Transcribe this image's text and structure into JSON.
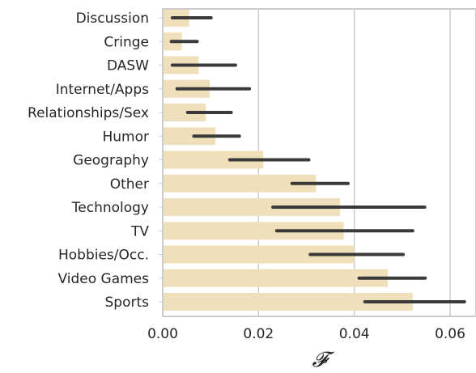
{
  "chart_data": {
    "type": "bar",
    "orientation": "horizontal",
    "categories": [
      "Discussion",
      "Cringe",
      "DASW",
      "Internet/Apps",
      "Relationships/Sex",
      "Humor",
      "Geography",
      "Other",
      "Technology",
      "TV",
      "Hobbies/Occ.",
      "Video Games",
      "Sports"
    ],
    "values": [
      0.0055,
      0.004,
      0.0075,
      0.0098,
      0.009,
      0.011,
      0.021,
      0.032,
      0.037,
      0.0378,
      0.04,
      0.047,
      0.0522
    ],
    "error_low": [
      0.002,
      0.0018,
      0.002,
      0.003,
      0.0052,
      0.0065,
      0.014,
      0.027,
      0.023,
      0.0238,
      0.0308,
      0.041,
      0.0422
    ],
    "error_high": [
      0.0101,
      0.0072,
      0.0152,
      0.0181,
      0.0143,
      0.016,
      0.0305,
      0.0387,
      0.0547,
      0.0522,
      0.0502,
      0.0548,
      0.063
    ],
    "xlabel": "𝓕",
    "ylabel": "",
    "xlim": [
      0,
      0.065
    ],
    "xticks": [
      0.0,
      0.02,
      0.04,
      0.06
    ],
    "xtick_labels": [
      "0.00",
      "0.02",
      "0.04",
      "0.06"
    ],
    "grid": "vertical",
    "colors": {
      "bar": "#f0dfbb",
      "errorbar": "#3a3a3a",
      "grid": "#cccccc",
      "spine": "#cccccc"
    }
  }
}
